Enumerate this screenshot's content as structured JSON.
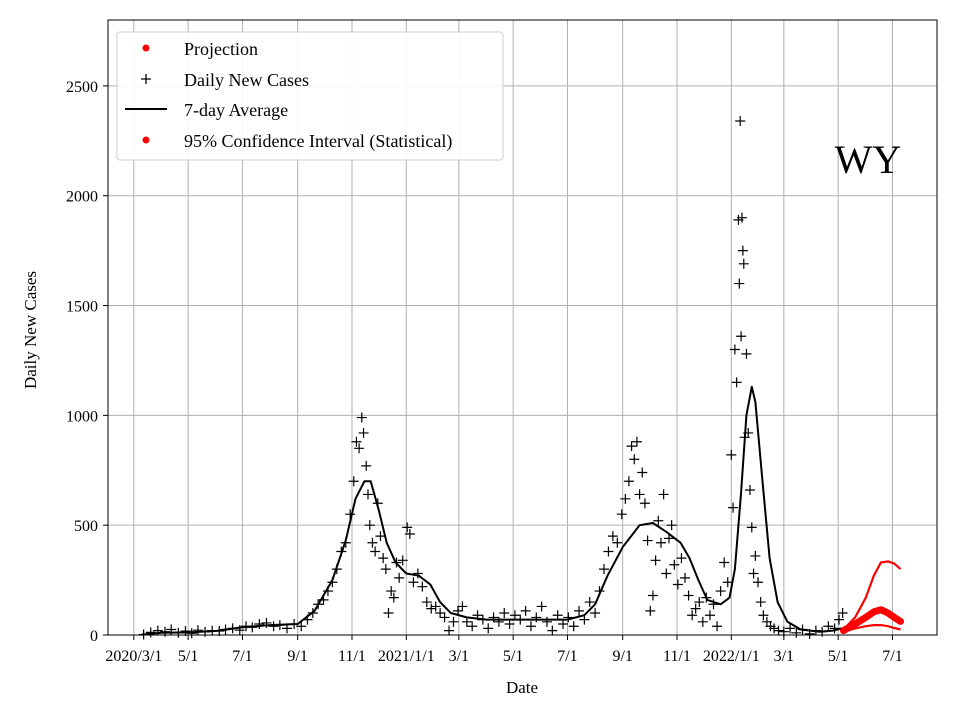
{
  "chart_data": {
    "type": "line",
    "state_label": "WY",
    "xlabel": "Date",
    "ylabel": "Daily New Cases",
    "ylim": [
      0,
      2800
    ],
    "yticks": [
      0,
      500,
      1000,
      1500,
      2000,
      2500
    ],
    "x_range": [
      "2020-02-01",
      "2022-08-20"
    ],
    "xticks": [
      {
        "date": "2020-03-01",
        "label": "2020/3/1"
      },
      {
        "date": "2020-05-01",
        "label": "5/1"
      },
      {
        "date": "2020-07-01",
        "label": "7/1"
      },
      {
        "date": "2020-09-01",
        "label": "9/1"
      },
      {
        "date": "2020-11-01",
        "label": "11/1"
      },
      {
        "date": "2021-01-01",
        "label": "2021/1/1"
      },
      {
        "date": "2021-03-01",
        "label": "3/1"
      },
      {
        "date": "2021-05-01",
        "label": "5/1"
      },
      {
        "date": "2021-07-01",
        "label": "7/1"
      },
      {
        "date": "2021-09-01",
        "label": "9/1"
      },
      {
        "date": "2021-11-01",
        "label": "11/1"
      },
      {
        "date": "2022-01-01",
        "label": "2022/1/1"
      },
      {
        "date": "2022-03-01",
        "label": "3/1"
      },
      {
        "date": "2022-05-01",
        "label": "5/1"
      },
      {
        "date": "2022-07-01",
        "label": "7/1"
      }
    ],
    "grid": true,
    "legend_position": "top-left",
    "legend": [
      {
        "label": "Projection",
        "marker": "dot",
        "color": "#ff0000"
      },
      {
        "label": "Daily New Cases",
        "marker": "plus",
        "color": "#000000"
      },
      {
        "label": "7-day Average",
        "marker": "line",
        "color": "#000000"
      },
      {
        "label": "95% Confidence Interval (Statistical)",
        "marker": "dot",
        "color": "#ff0000"
      }
    ],
    "series": [
      {
        "name": "7-day Average",
        "color": "#000000",
        "points": [
          [
            "2020-03-10",
            2
          ],
          [
            "2020-04-01",
            10
          ],
          [
            "2020-05-01",
            12
          ],
          [
            "2020-06-01",
            18
          ],
          [
            "2020-07-01",
            35
          ],
          [
            "2020-08-01",
            45
          ],
          [
            "2020-09-01",
            50
          ],
          [
            "2020-09-20",
            110
          ],
          [
            "2020-10-10",
            250
          ],
          [
            "2020-10-25",
            430
          ],
          [
            "2020-11-05",
            620
          ],
          [
            "2020-11-15",
            700
          ],
          [
            "2020-11-22",
            700
          ],
          [
            "2020-12-01",
            570
          ],
          [
            "2020-12-10",
            420
          ],
          [
            "2020-12-20",
            330
          ],
          [
            "2021-01-01",
            280
          ],
          [
            "2021-01-15",
            270
          ],
          [
            "2021-01-28",
            230
          ],
          [
            "2021-02-08",
            150
          ],
          [
            "2021-02-20",
            100
          ],
          [
            "2021-03-10",
            80
          ],
          [
            "2021-04-01",
            70
          ],
          [
            "2021-05-01",
            70
          ],
          [
            "2021-06-01",
            70
          ],
          [
            "2021-07-01",
            70
          ],
          [
            "2021-07-20",
            90
          ],
          [
            "2021-08-01",
            140
          ],
          [
            "2021-08-15",
            270
          ],
          [
            "2021-09-01",
            400
          ],
          [
            "2021-09-20",
            500
          ],
          [
            "2021-10-05",
            510
          ],
          [
            "2021-10-20",
            470
          ],
          [
            "2021-11-05",
            420
          ],
          [
            "2021-11-15",
            350
          ],
          [
            "2021-11-25",
            250
          ],
          [
            "2021-12-05",
            160
          ],
          [
            "2021-12-20",
            140
          ],
          [
            "2021-12-30",
            170
          ],
          [
            "2022-01-05",
            300
          ],
          [
            "2022-01-12",
            650
          ],
          [
            "2022-01-18",
            1000
          ],
          [
            "2022-01-24",
            1130
          ],
          [
            "2022-01-28",
            1060
          ],
          [
            "2022-02-05",
            700
          ],
          [
            "2022-02-13",
            350
          ],
          [
            "2022-02-22",
            150
          ],
          [
            "2022-03-05",
            60
          ],
          [
            "2022-03-20",
            25
          ],
          [
            "2022-04-10",
            15
          ],
          [
            "2022-04-25",
            20
          ],
          [
            "2022-05-05",
            30
          ]
        ]
      },
      {
        "name": "Projection",
        "color": "#ff0000",
        "points": [
          [
            "2022-05-07",
            20
          ],
          [
            "2022-05-20",
            50
          ],
          [
            "2022-06-01",
            80
          ],
          [
            "2022-06-10",
            105
          ],
          [
            "2022-06-18",
            115
          ],
          [
            "2022-06-26",
            100
          ],
          [
            "2022-07-03",
            80
          ],
          [
            "2022-07-10",
            62
          ]
        ]
      }
    ],
    "confidence_interval": {
      "name": "95% Confidence Interval (Statistical)",
      "color": "#ff0000",
      "upper": [
        [
          "2022-05-07",
          25
        ],
        [
          "2022-05-20",
          80
        ],
        [
          "2022-06-01",
          170
        ],
        [
          "2022-06-10",
          270
        ],
        [
          "2022-06-18",
          330
        ],
        [
          "2022-06-26",
          335
        ],
        [
          "2022-07-03",
          325
        ],
        [
          "2022-07-10",
          300
        ]
      ],
      "lower": [
        [
          "2022-05-07",
          15
        ],
        [
          "2022-05-20",
          30
        ],
        [
          "2022-06-01",
          40
        ],
        [
          "2022-06-10",
          45
        ],
        [
          "2022-06-18",
          45
        ],
        [
          "2022-06-26",
          40
        ],
        [
          "2022-07-03",
          32
        ],
        [
          "2022-07-10",
          25
        ]
      ]
    },
    "daily_new_cases": [
      [
        "2020-03-12",
        2
      ],
      [
        "2020-03-20",
        12
      ],
      [
        "2020-03-28",
        20
      ],
      [
        "2020-04-05",
        15
      ],
      [
        "2020-04-12",
        25
      ],
      [
        "2020-04-20",
        10
      ],
      [
        "2020-04-28",
        18
      ],
      [
        "2020-05-05",
        8
      ],
      [
        "2020-05-12",
        22
      ],
      [
        "2020-05-20",
        14
      ],
      [
        "2020-05-28",
        20
      ],
      [
        "2020-06-05",
        18
      ],
      [
        "2020-06-12",
        25
      ],
      [
        "2020-06-20",
        30
      ],
      [
        "2020-06-28",
        22
      ],
      [
        "2020-07-05",
        40
      ],
      [
        "2020-07-12",
        35
      ],
      [
        "2020-07-20",
        50
      ],
      [
        "2020-07-28",
        55
      ],
      [
        "2020-08-05",
        40
      ],
      [
        "2020-08-12",
        45
      ],
      [
        "2020-08-20",
        30
      ],
      [
        "2020-08-28",
        50
      ],
      [
        "2020-09-05",
        40
      ],
      [
        "2020-09-12",
        70
      ],
      [
        "2020-09-18",
        100
      ],
      [
        "2020-09-24",
        140
      ],
      [
        "2020-09-30",
        160
      ],
      [
        "2020-10-05",
        200
      ],
      [
        "2020-10-10",
        240
      ],
      [
        "2020-10-15",
        300
      ],
      [
        "2020-10-20",
        380
      ],
      [
        "2020-10-25",
        420
      ],
      [
        "2020-10-30",
        550
      ],
      [
        "2020-11-03",
        700
      ],
      [
        "2020-11-06",
        880
      ],
      [
        "2020-11-09",
        850
      ],
      [
        "2020-11-12",
        990
      ],
      [
        "2020-11-14",
        920
      ],
      [
        "2020-11-17",
        770
      ],
      [
        "2020-11-19",
        640
      ],
      [
        "2020-11-21",
        500
      ],
      [
        "2020-11-24",
        420
      ],
      [
        "2020-11-27",
        380
      ],
      [
        "2020-11-30",
        600
      ],
      [
        "2020-12-03",
        450
      ],
      [
        "2020-12-06",
        350
      ],
      [
        "2020-12-09",
        300
      ],
      [
        "2020-12-12",
        100
      ],
      [
        "2020-12-15",
        200
      ],
      [
        "2020-12-18",
        170
      ],
      [
        "2020-12-21",
        330
      ],
      [
        "2020-12-24",
        260
      ],
      [
        "2020-12-28",
        340
      ],
      [
        "2021-01-02",
        490
      ],
      [
        "2021-01-05",
        460
      ],
      [
        "2021-01-09",
        240
      ],
      [
        "2021-01-14",
        280
      ],
      [
        "2021-01-19",
        220
      ],
      [
        "2021-01-24",
        150
      ],
      [
        "2021-01-29",
        120
      ],
      [
        "2021-02-03",
        130
      ],
      [
        "2021-02-08",
        100
      ],
      [
        "2021-02-13",
        80
      ],
      [
        "2021-02-18",
        20
      ],
      [
        "2021-02-23",
        60
      ],
      [
        "2021-02-28",
        110
      ],
      [
        "2021-03-05",
        130
      ],
      [
        "2021-03-10",
        60
      ],
      [
        "2021-03-16",
        40
      ],
      [
        "2021-03-22",
        90
      ],
      [
        "2021-03-28",
        70
      ],
      [
        "2021-04-03",
        30
      ],
      [
        "2021-04-09",
        80
      ],
      [
        "2021-04-15",
        60
      ],
      [
        "2021-04-21",
        100
      ],
      [
        "2021-04-27",
        50
      ],
      [
        "2021-05-03",
        90
      ],
      [
        "2021-05-09",
        70
      ],
      [
        "2021-05-15",
        110
      ],
      [
        "2021-05-21",
        40
      ],
      [
        "2021-05-27",
        80
      ],
      [
        "2021-06-02",
        130
      ],
      [
        "2021-06-08",
        60
      ],
      [
        "2021-06-14",
        20
      ],
      [
        "2021-06-20",
        90
      ],
      [
        "2021-06-26",
        50
      ],
      [
        "2021-07-02",
        80
      ],
      [
        "2021-07-08",
        40
      ],
      [
        "2021-07-14",
        110
      ],
      [
        "2021-07-20",
        70
      ],
      [
        "2021-07-26",
        150
      ],
      [
        "2021-08-01",
        100
      ],
      [
        "2021-08-06",
        200
      ],
      [
        "2021-08-11",
        300
      ],
      [
        "2021-08-16",
        380
      ],
      [
        "2021-08-21",
        450
      ],
      [
        "2021-08-26",
        420
      ],
      [
        "2021-08-31",
        550
      ],
      [
        "2021-09-04",
        620
      ],
      [
        "2021-09-08",
        700
      ],
      [
        "2021-09-11",
        860
      ],
      [
        "2021-09-14",
        800
      ],
      [
        "2021-09-17",
        880
      ],
      [
        "2021-09-20",
        640
      ],
      [
        "2021-09-23",
        740
      ],
      [
        "2021-09-26",
        600
      ],
      [
        "2021-09-29",
        430
      ],
      [
        "2021-10-02",
        110
      ],
      [
        "2021-10-05",
        180
      ],
      [
        "2021-10-08",
        340
      ],
      [
        "2021-10-11",
        520
      ],
      [
        "2021-10-14",
        420
      ],
      [
        "2021-10-17",
        640
      ],
      [
        "2021-10-20",
        280
      ],
      [
        "2021-10-23",
        440
      ],
      [
        "2021-10-26",
        500
      ],
      [
        "2021-10-29",
        320
      ],
      [
        "2021-11-02",
        230
      ],
      [
        "2021-11-06",
        350
      ],
      [
        "2021-11-10",
        260
      ],
      [
        "2021-11-14",
        180
      ],
      [
        "2021-11-18",
        90
      ],
      [
        "2021-11-22",
        120
      ],
      [
        "2021-11-26",
        150
      ],
      [
        "2021-11-30",
        60
      ],
      [
        "2021-12-04",
        170
      ],
      [
        "2021-12-08",
        90
      ],
      [
        "2021-12-12",
        140
      ],
      [
        "2021-12-16",
        40
      ],
      [
        "2021-12-20",
        200
      ],
      [
        "2021-12-24",
        330
      ],
      [
        "2021-12-28",
        240
      ],
      [
        "2022-01-01",
        820
      ],
      [
        "2022-01-03",
        580
      ],
      [
        "2022-01-05",
        1300
      ],
      [
        "2022-01-07",
        1150
      ],
      [
        "2022-01-09",
        1890
      ],
      [
        "2022-01-10",
        1600
      ],
      [
        "2022-01-11",
        2340
      ],
      [
        "2022-01-12",
        1360
      ],
      [
        "2022-01-13",
        1900
      ],
      [
        "2022-01-14",
        1750
      ],
      [
        "2022-01-15",
        1690
      ],
      [
        "2022-01-16",
        900
      ],
      [
        "2022-01-18",
        1280
      ],
      [
        "2022-01-20",
        920
      ],
      [
        "2022-01-22",
        660
      ],
      [
        "2022-01-24",
        490
      ],
      [
        "2022-01-26",
        280
      ],
      [
        "2022-01-28",
        360
      ],
      [
        "2022-01-31",
        240
      ],
      [
        "2022-02-03",
        150
      ],
      [
        "2022-02-06",
        90
      ],
      [
        "2022-02-10",
        60
      ],
      [
        "2022-02-14",
        40
      ],
      [
        "2022-02-18",
        30
      ],
      [
        "2022-02-23",
        20
      ],
      [
        "2022-03-01",
        15
      ],
      [
        "2022-03-08",
        30
      ],
      [
        "2022-03-15",
        10
      ],
      [
        "2022-03-22",
        25
      ],
      [
        "2022-03-30",
        5
      ],
      [
        "2022-04-06",
        20
      ],
      [
        "2022-04-13",
        15
      ],
      [
        "2022-04-20",
        40
      ],
      [
        "2022-04-27",
        30
      ],
      [
        "2022-05-02",
        70
      ],
      [
        "2022-05-06",
        100
      ]
    ]
  }
}
